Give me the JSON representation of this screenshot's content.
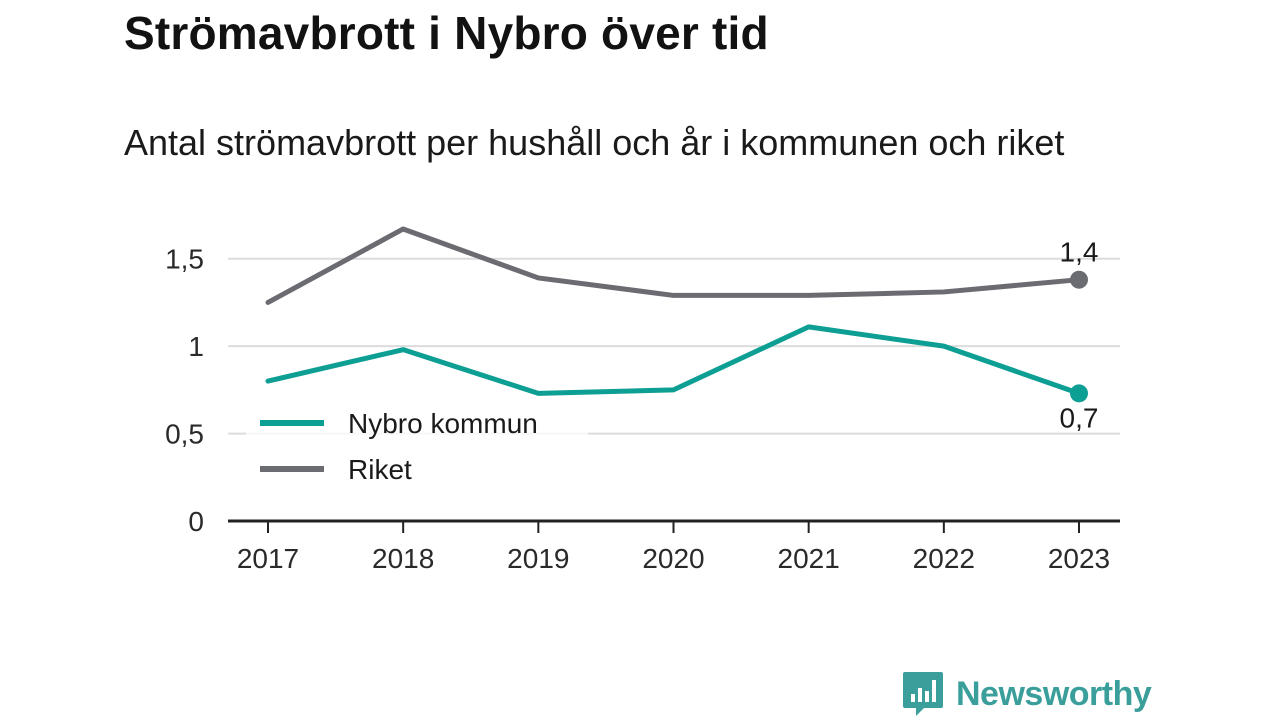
{
  "title": "Strömavbrott i Nybro över tid",
  "subtitle": "Antal strömavbrott per hushåll och år i kommunen och riket",
  "brand": {
    "name": "Newsworthy",
    "color": "#3a9e9b"
  },
  "chart_data": {
    "type": "line",
    "categories": [
      "2017",
      "2018",
      "2019",
      "2020",
      "2021",
      "2022",
      "2023"
    ],
    "y_ticks": [
      {
        "value": 0,
        "label": "0"
      },
      {
        "value": 0.5,
        "label": "0,5"
      },
      {
        "value": 1,
        "label": "1"
      },
      {
        "value": 1.5,
        "label": "1,5"
      }
    ],
    "ylim": [
      0,
      1.75
    ],
    "grid": true,
    "legend_position": "left",
    "series": [
      {
        "name": "Nybro kommun",
        "color": "#0e9f94",
        "values": [
          0.8,
          0.98,
          0.73,
          0.75,
          1.11,
          1.0,
          0.73
        ],
        "end_label": "0,7"
      },
      {
        "name": "Riket",
        "color": "#6b6b72",
        "values": [
          1.25,
          1.67,
          1.39,
          1.29,
          1.29,
          1.31,
          1.38
        ],
        "end_label": "1,4"
      }
    ]
  }
}
